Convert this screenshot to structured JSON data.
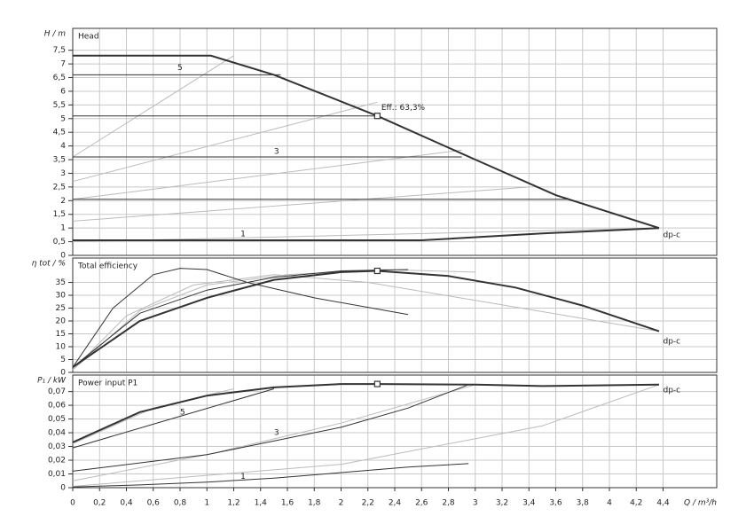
{
  "chart_data": [
    {
      "type": "line",
      "title": "Head",
      "ylabel": "H / m",
      "ylim": [
        0,
        8.3
      ],
      "yticks": [
        0,
        {
          "value": 0.5,
          "label": "0,5"
        },
        1,
        {
          "value": 1.5,
          "label": "1,5"
        },
        2,
        {
          "value": 2.5,
          "label": "2,5"
        },
        3,
        {
          "value": 3.5,
          "label": "3,5"
        },
        4,
        {
          "value": 4.5,
          "label": "4,5"
        },
        5,
        {
          "value": 5.5,
          "label": "5,5"
        },
        6,
        {
          "value": 6.5,
          "label": "6,5"
        },
        7,
        {
          "value": 7.5,
          "label": "7,5"
        }
      ],
      "series": [
        {
          "color": "#bbb",
          "width": 1,
          "x": [
            0,
            1.2
          ],
          "values": [
            3.6,
            7.3
          ]
        },
        {
          "color": "#bbb",
          "width": 1,
          "x": [
            0,
            2.27
          ],
          "values": [
            2.7,
            5.6
          ]
        },
        {
          "color": "#bbb",
          "width": 1,
          "x": [
            0,
            2.9
          ],
          "values": [
            2.05,
            3.85
          ]
        },
        {
          "color": "#bbb",
          "width": 1,
          "x": [
            0,
            3.4
          ],
          "values": [
            1.25,
            2.5
          ]
        },
        {
          "color": "#bbb",
          "width": 1,
          "x": [
            0,
            4.37
          ],
          "values": [
            0.5,
            1.0
          ]
        },
        {
          "color": "#333",
          "width": 1,
          "x": [
            0,
            1.55
          ],
          "values": [
            6.6,
            6.6
          ]
        },
        {
          "color": "#333",
          "width": 1,
          "x": [
            0,
            2.27
          ],
          "values": [
            5.1,
            5.1
          ]
        },
        {
          "color": "#333",
          "width": 1,
          "x": [
            0,
            2.9
          ],
          "values": [
            3.6,
            3.6
          ]
        },
        {
          "color": "#333",
          "width": 1,
          "x": [
            0,
            3.7
          ],
          "values": [
            2.05,
            2.05
          ]
        },
        {
          "color": "#333",
          "width": 2,
          "x": [
            0,
            2.6,
            3.5,
            4.37
          ],
          "values": [
            0.55,
            0.55,
            0.8,
            1.0
          ]
        },
        {
          "color": "#333",
          "width": 2,
          "x": [
            0,
            1.03,
            1.5,
            2.27,
            3,
            3.6,
            4.37
          ],
          "values": [
            7.3,
            7.3,
            6.6,
            5.1,
            3.5,
            2.2,
            1.0
          ]
        }
      ],
      "annotations": [
        {
          "text": "5",
          "x": 0.78,
          "y": 6.85
        },
        {
          "text": "3",
          "x": 1.5,
          "y": 3.8
        },
        {
          "text": "1",
          "x": 1.25,
          "y": 0.78
        },
        {
          "text": "Eff.: 63,3%",
          "x": 2.3,
          "y": 5.4
        },
        {
          "text": "dp-c",
          "x": 4.4,
          "y": 0.75
        }
      ],
      "operating_point": {
        "x": 2.27,
        "y": 5.1
      }
    },
    {
      "type": "line",
      "title": "Total efficiency",
      "ylabel": "η tot / %",
      "ylim": [
        0,
        44.5
      ],
      "yticks": [
        0,
        5,
        10,
        15,
        20,
        25,
        30,
        35
      ],
      "series": [
        {
          "color": "#bbb",
          "width": 1,
          "x": [
            0,
            0.4,
            0.9,
            1.5,
            2.2,
            3,
            4.37
          ],
          "values": [
            1,
            22,
            34,
            38,
            35,
            28,
            16
          ]
        },
        {
          "color": "#bbb",
          "width": 1,
          "x": [
            0,
            0.5,
            1,
            1.6,
            2.3,
            3
          ],
          "values": [
            1,
            24,
            34,
            38,
            40,
            39
          ]
        },
        {
          "color": "#333",
          "width": 1,
          "x": [
            0,
            0.3,
            0.6,
            0.8,
            1,
            1.3,
            1.8,
            2.5
          ],
          "values": [
            2,
            25,
            38,
            40.5,
            40,
            35,
            29,
            22.5
          ]
        },
        {
          "color": "#333",
          "width": 1,
          "x": [
            0,
            0.5,
            1,
            1.5,
            2,
            2.5
          ],
          "values": [
            2,
            23,
            32,
            37,
            39.5,
            40
          ]
        },
        {
          "color": "#333",
          "width": 2,
          "x": [
            0,
            0.5,
            1,
            1.5,
            2,
            2.27,
            2.8,
            3.3,
            3.8,
            4.37
          ],
          "values": [
            2,
            20,
            29,
            36,
            39,
            39.5,
            37.5,
            33,
            26,
            16
          ]
        }
      ],
      "annotations": [
        {
          "text": "dp-c",
          "x": 4.4,
          "y": 12
        }
      ],
      "operating_point": {
        "x": 2.27,
        "y": 39.5
      }
    },
    {
      "type": "line",
      "title": "Power input P1",
      "ylabel": "P₁ / kW",
      "ylim": [
        0,
        0.082
      ],
      "yticks": [
        0,
        {
          "value": 0.01,
          "label": "0,01"
        },
        {
          "value": 0.02,
          "label": "0,02"
        },
        {
          "value": 0.03,
          "label": "0,03"
        },
        {
          "value": 0.04,
          "label": "0,04"
        },
        {
          "value": 0.05,
          "label": "0,05"
        },
        {
          "value": 0.06,
          "label": "0,06"
        },
        {
          "value": 0.07,
          "label": "0,07"
        }
      ],
      "xlabel": "Q / m³/h",
      "xlim": [
        0,
        4.8
      ],
      "xticks": [
        0,
        {
          "value": 0.2,
          "label": "0,2"
        },
        {
          "value": 0.4,
          "label": "0,4"
        },
        {
          "value": 0.6,
          "label": "0,6"
        },
        {
          "value": 0.8,
          "label": "0,8"
        },
        1,
        {
          "value": 1.2,
          "label": "1,2"
        },
        {
          "value": 1.4,
          "label": "1,4"
        },
        {
          "value": 1.6,
          "label": "1,6"
        },
        {
          "value": 1.8,
          "label": "1,8"
        },
        2,
        {
          "value": 2.2,
          "label": "2,2"
        },
        {
          "value": 2.4,
          "label": "2,4"
        },
        {
          "value": 2.6,
          "label": "2,6"
        },
        {
          "value": 2.8,
          "label": "2,8"
        },
        3,
        {
          "value": 3.2,
          "label": "3,2"
        },
        {
          "value": 3.4,
          "label": "3,4"
        },
        {
          "value": 3.6,
          "label": "3,6"
        },
        {
          "value": 3.8,
          "label": "3,8"
        },
        4,
        {
          "value": 4.2,
          "label": "4,2"
        },
        {
          "value": 4.4,
          "label": "4,4"
        }
      ],
      "series": [
        {
          "color": "#bbb",
          "width": 1,
          "x": [
            0,
            1,
            2,
            3
          ],
          "values": [
            0.005,
            0.024,
            0.047,
            0.075
          ]
        },
        {
          "color": "#bbb",
          "width": 1,
          "x": [
            0,
            2,
            3.5,
            4.37
          ],
          "values": [
            0.001,
            0.017,
            0.045,
            0.075
          ]
        },
        {
          "color": "#bbb",
          "width": 1,
          "x": [
            0,
            0.6,
            1.2
          ],
          "values": [
            0.032,
            0.058,
            0.072
          ]
        },
        {
          "color": "#333",
          "width": 1,
          "x": [
            0,
            0.5,
            1,
            1.5,
            2,
            2.5,
            2.95
          ],
          "values": [
            0.0005,
            0.002,
            0.004,
            0.007,
            0.011,
            0.015,
            0.0175
          ]
        },
        {
          "color": "#333",
          "width": 1,
          "x": [
            0,
            1,
            2,
            2.5,
            2.95
          ],
          "values": [
            0.012,
            0.024,
            0.044,
            0.058,
            0.075
          ]
        },
        {
          "color": "#333",
          "width": 1,
          "x": [
            0,
            0.8,
            1.5
          ],
          "values": [
            0.029,
            0.052,
            0.072
          ]
        },
        {
          "color": "#333",
          "width": 2,
          "x": [
            0,
            0.5,
            1,
            1.5,
            2,
            2.27,
            3,
            3.5,
            4.37
          ],
          "values": [
            0.033,
            0.055,
            0.067,
            0.073,
            0.0755,
            0.0755,
            0.075,
            0.074,
            0.075
          ]
        }
      ],
      "annotations": [
        {
          "text": "5",
          "x": 0.8,
          "y": 0.055
        },
        {
          "text": "3",
          "x": 1.5,
          "y": 0.04
        },
        {
          "text": "1",
          "x": 1.25,
          "y": 0.008
        },
        {
          "text": "dp-c",
          "x": 4.4,
          "y": 0.071
        }
      ],
      "operating_point": {
        "x": 2.27,
        "y": 0.0755
      }
    }
  ]
}
